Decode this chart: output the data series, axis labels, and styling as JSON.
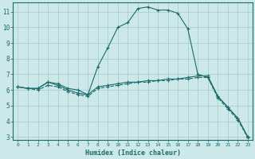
{
  "xlabel": "Humidex (Indice chaleur)",
  "bg_color": "#cde8e8",
  "grid_color": "#aacfcf",
  "line_color": "#1a6b6b",
  "xlim": [
    -0.5,
    23.5
  ],
  "ylim": [
    2.8,
    11.6
  ],
  "xticks": [
    0,
    1,
    2,
    3,
    4,
    5,
    6,
    7,
    8,
    9,
    10,
    11,
    12,
    13,
    14,
    15,
    16,
    17,
    18,
    19,
    20,
    21,
    22,
    23
  ],
  "yticks": [
    3,
    4,
    5,
    6,
    7,
    8,
    9,
    10,
    11
  ],
  "line1_x": [
    0,
    1,
    2,
    3,
    4,
    5,
    6,
    7,
    8,
    9,
    10,
    11,
    12,
    13,
    14,
    15,
    16,
    17,
    18,
    19,
    20,
    21,
    22,
    23
  ],
  "line1_y": [
    6.2,
    6.1,
    6.1,
    6.5,
    6.4,
    6.1,
    6.0,
    5.7,
    7.5,
    8.7,
    10.0,
    10.3,
    11.2,
    11.3,
    11.1,
    11.1,
    10.9,
    9.9,
    7.0,
    6.8,
    5.6,
    4.9,
    4.2,
    3.0
  ],
  "line2_x": [
    0,
    1,
    2,
    3,
    4,
    5,
    6,
    7,
    8,
    9,
    10,
    11,
    12,
    13,
    14,
    15,
    16,
    17,
    18,
    19,
    20,
    21,
    22,
    23
  ],
  "line2_y": [
    6.2,
    6.1,
    6.1,
    6.5,
    6.3,
    6.0,
    5.8,
    5.7,
    6.2,
    6.3,
    6.4,
    6.5,
    6.5,
    6.6,
    6.6,
    6.7,
    6.7,
    6.8,
    6.9,
    6.9,
    5.6,
    4.9,
    4.2,
    3.0
  ],
  "line3_x": [
    0,
    1,
    2,
    3,
    4,
    5,
    6,
    7,
    8,
    9,
    10,
    11,
    12,
    13,
    14,
    15,
    16,
    17,
    18,
    19,
    20,
    21,
    22,
    23
  ],
  "line3_y": [
    6.2,
    6.1,
    6.0,
    6.3,
    6.2,
    5.9,
    5.7,
    5.6,
    6.1,
    6.2,
    6.3,
    6.4,
    6.5,
    6.5,
    6.6,
    6.6,
    6.7,
    6.7,
    6.8,
    6.8,
    5.5,
    4.8,
    4.1,
    2.95
  ]
}
